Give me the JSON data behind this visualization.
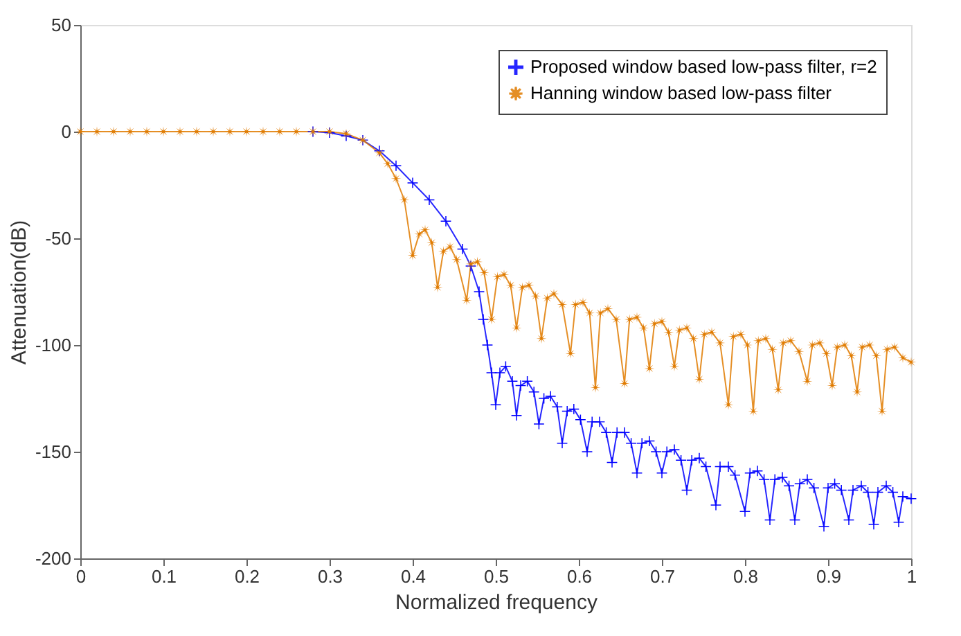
{
  "chart_data": {
    "type": "line",
    "xlabel": "Normalized frequency",
    "ylabel": "Attenuation(dB)",
    "xlim": [
      0,
      1
    ],
    "ylim": [
      -200,
      50
    ],
    "xticks": [
      0,
      0.1,
      0.2,
      0.3,
      0.4,
      0.5,
      0.6,
      0.7,
      0.8,
      0.9,
      1
    ],
    "yticks": [
      -200,
      -150,
      -100,
      -50,
      0,
      50
    ],
    "grid": false,
    "legend": "top right",
    "line_style": "solid",
    "series": [
      {
        "name": "Proposed window based low-pass filter, r=2",
        "color": "#0000ff",
        "marker": "cross",
        "x": [
          0.28,
          0.3,
          0.32,
          0.34,
          0.36,
          0.38,
          0.4,
          0.42,
          0.44,
          0.46,
          0.47,
          0.48,
          0.485,
          0.49,
          0.495,
          0.5,
          0.505,
          0.512,
          0.52,
          0.525,
          0.53,
          0.538,
          0.546,
          0.552,
          0.558,
          0.566,
          0.574,
          0.58,
          0.586,
          0.594,
          0.602,
          0.61,
          0.616,
          0.625,
          0.633,
          0.64,
          0.646,
          0.655,
          0.663,
          0.67,
          0.676,
          0.685,
          0.693,
          0.7,
          0.706,
          0.715,
          0.723,
          0.73,
          0.736,
          0.745,
          0.753,
          0.765,
          0.77,
          0.78,
          0.788,
          0.8,
          0.806,
          0.815,
          0.823,
          0.83,
          0.836,
          0.845,
          0.853,
          0.86,
          0.866,
          0.875,
          0.883,
          0.895,
          0.9,
          0.908,
          0.916,
          0.925,
          0.93,
          0.94,
          0.948,
          0.955,
          0.96,
          0.97,
          0.978,
          0.985,
          0.99,
          1.0
        ],
        "values": [
          0,
          -0.5,
          -2,
          -4,
          -9,
          -16,
          -24,
          -32,
          -42,
          -55,
          -63,
          -75,
          -88,
          -100,
          -113,
          -128,
          -113,
          -110,
          -117,
          -133,
          -119,
          -117,
          -122,
          -137,
          -125,
          -124,
          -129,
          -146,
          -131,
          -130,
          -135,
          -150,
          -136,
          -136,
          -141,
          -155,
          -141,
          -141,
          -146,
          -160,
          -146,
          -145,
          -150,
          -160,
          -150,
          -149,
          -154,
          -168,
          -154,
          -153,
          -157,
          -175,
          -157,
          -157,
          -161,
          -178,
          -160,
          -159,
          -163,
          -182,
          -163,
          -162,
          -166,
          -182,
          -165,
          -163,
          -167,
          -185,
          -167,
          -165,
          -168,
          -182,
          -168,
          -166,
          -169,
          -184,
          -169,
          -166,
          -169,
          -183,
          -171,
          -172
        ]
      },
      {
        "name": "Hanning window based low-pass filter",
        "color": "#e07b00",
        "marker": "star",
        "x": [
          0,
          0.02,
          0.04,
          0.06,
          0.08,
          0.1,
          0.12,
          0.14,
          0.16,
          0.18,
          0.2,
          0.22,
          0.24,
          0.26,
          0.28,
          0.3,
          0.32,
          0.34,
          0.36,
          0.37,
          0.38,
          0.39,
          0.4,
          0.408,
          0.415,
          0.423,
          0.43,
          0.437,
          0.445,
          0.453,
          0.465,
          0.47,
          0.478,
          0.486,
          0.495,
          0.502,
          0.51,
          0.518,
          0.525,
          0.532,
          0.54,
          0.548,
          0.555,
          0.562,
          0.57,
          0.58,
          0.59,
          0.596,
          0.605,
          0.613,
          0.62,
          0.626,
          0.635,
          0.645,
          0.655,
          0.661,
          0.67,
          0.678,
          0.685,
          0.691,
          0.7,
          0.708,
          0.715,
          0.721,
          0.73,
          0.738,
          0.745,
          0.751,
          0.76,
          0.77,
          0.78,
          0.786,
          0.795,
          0.803,
          0.81,
          0.816,
          0.825,
          0.833,
          0.84,
          0.846,
          0.855,
          0.865,
          0.875,
          0.881,
          0.89,
          0.898,
          0.905,
          0.911,
          0.92,
          0.928,
          0.935,
          0.941,
          0.95,
          0.958,
          0.965,
          0.971,
          0.98,
          0.99,
          1.0
        ],
        "values": [
          0,
          0,
          0,
          0,
          0,
          0,
          0,
          0,
          0,
          0,
          0,
          0,
          0,
          0,
          0,
          0,
          -1,
          -4,
          -10,
          -15,
          -22,
          -32,
          -58,
          -48,
          -46,
          -52,
          -73,
          -56,
          -54,
          -60,
          -79,
          -62,
          -61,
          -66,
          -88,
          -68,
          -67,
          -72,
          -92,
          -73,
          -72,
          -77,
          -97,
          -78,
          -76,
          -81,
          -104,
          -81,
          -80,
          -85,
          -120,
          -85,
          -83,
          -88,
          -118,
          -88,
          -87,
          -92,
          -111,
          -90,
          -89,
          -94,
          -110,
          -93,
          -92,
          -97,
          -116,
          -95,
          -94,
          -99,
          -128,
          -96,
          -95,
          -100,
          -131,
          -98,
          -97,
          -102,
          -121,
          -99,
          -98,
          -103,
          -117,
          -100,
          -99,
          -104,
          -119,
          -101,
          -100,
          -105,
          -122,
          -101,
          -100,
          -105,
          -131,
          -102,
          -101,
          -106,
          -108
        ]
      }
    ]
  }
}
